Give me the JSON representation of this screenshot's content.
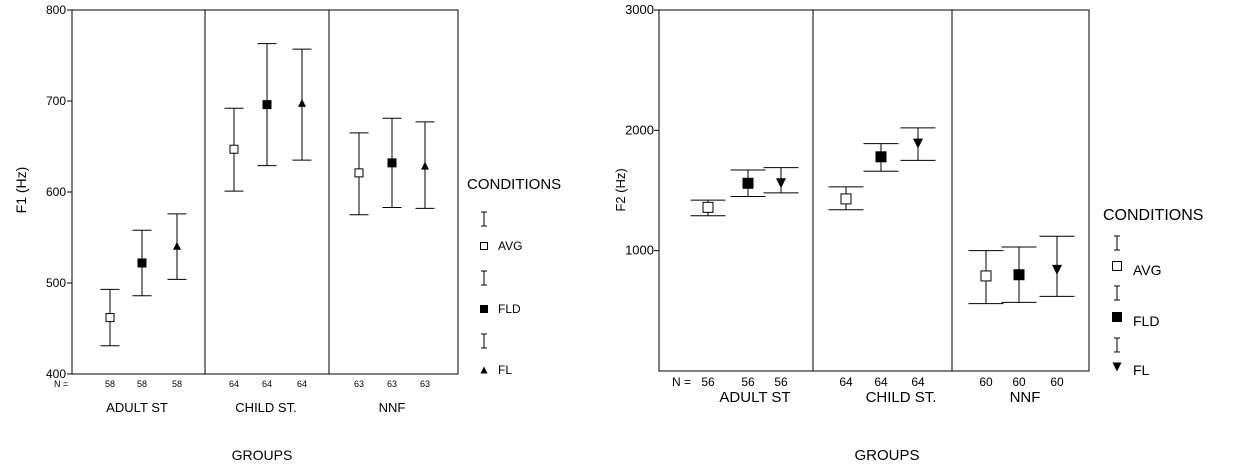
{
  "chart_data": [
    {
      "type": "errorbar",
      "title": "",
      "xlabel": "GROUPS",
      "ylabel": "F1 (Hz)",
      "ylim": [
        400,
        800
      ],
      "yticks": [
        400,
        500,
        600,
        700,
        800
      ],
      "n_label": "N =",
      "groups": [
        "ADULT ST",
        "CHILD  ST.",
        "NNF"
      ],
      "legend_title": "CONDITIONS",
      "legend_placement": "right",
      "series": [
        {
          "name": "AVG",
          "marker": "open-square",
          "mean": [
            462,
            647,
            621
          ],
          "low": [
            431,
            601,
            575
          ],
          "high": [
            493,
            692,
            665
          ],
          "n": [
            58,
            64,
            63
          ]
        },
        {
          "name": "FLD",
          "marker": "filled-square",
          "mean": [
            522,
            696,
            632
          ],
          "low": [
            486,
            629,
            583
          ],
          "high": [
            558,
            763,
            681
          ],
          "n": [
            58,
            64,
            63
          ]
        },
        {
          "name": "FL",
          "marker": "triangle-up",
          "mean": [
            541,
            698,
            629
          ],
          "low": [
            504,
            635,
            582
          ],
          "high": [
            576,
            757,
            677
          ],
          "n": [
            58,
            64,
            63
          ]
        }
      ]
    },
    {
      "type": "errorbar",
      "title": "",
      "xlabel": "GROUPS",
      "ylabel": "F2 (Hz)",
      "ylim": [
        0,
        3000
      ],
      "yticks": [
        1000,
        2000,
        3000
      ],
      "n_label": "N =",
      "groups": [
        "ADULT ST",
        "CHILD ST.",
        "NNF"
      ],
      "legend_title": "CONDITIONS",
      "legend_placement": "right",
      "series": [
        {
          "name": "AVG",
          "marker": "open-square",
          "mean": [
            1360,
            1430,
            790
          ],
          "low": [
            1290,
            1340,
            560
          ],
          "high": [
            1420,
            1530,
            1000
          ],
          "n": [
            56,
            64,
            60
          ]
        },
        {
          "name": "FLD",
          "marker": "filled-square",
          "mean": [
            1560,
            1780,
            800
          ],
          "low": [
            1450,
            1660,
            570
          ],
          "high": [
            1670,
            1890,
            1030
          ],
          "n": [
            56,
            64,
            60
          ]
        },
        {
          "name": "FL",
          "marker": "triangle-down",
          "mean": [
            1560,
            1890,
            840
          ],
          "low": [
            1480,
            1750,
            620
          ],
          "high": [
            1690,
            2020,
            1120
          ],
          "n": [
            56,
            64,
            60
          ]
        }
      ]
    }
  ]
}
